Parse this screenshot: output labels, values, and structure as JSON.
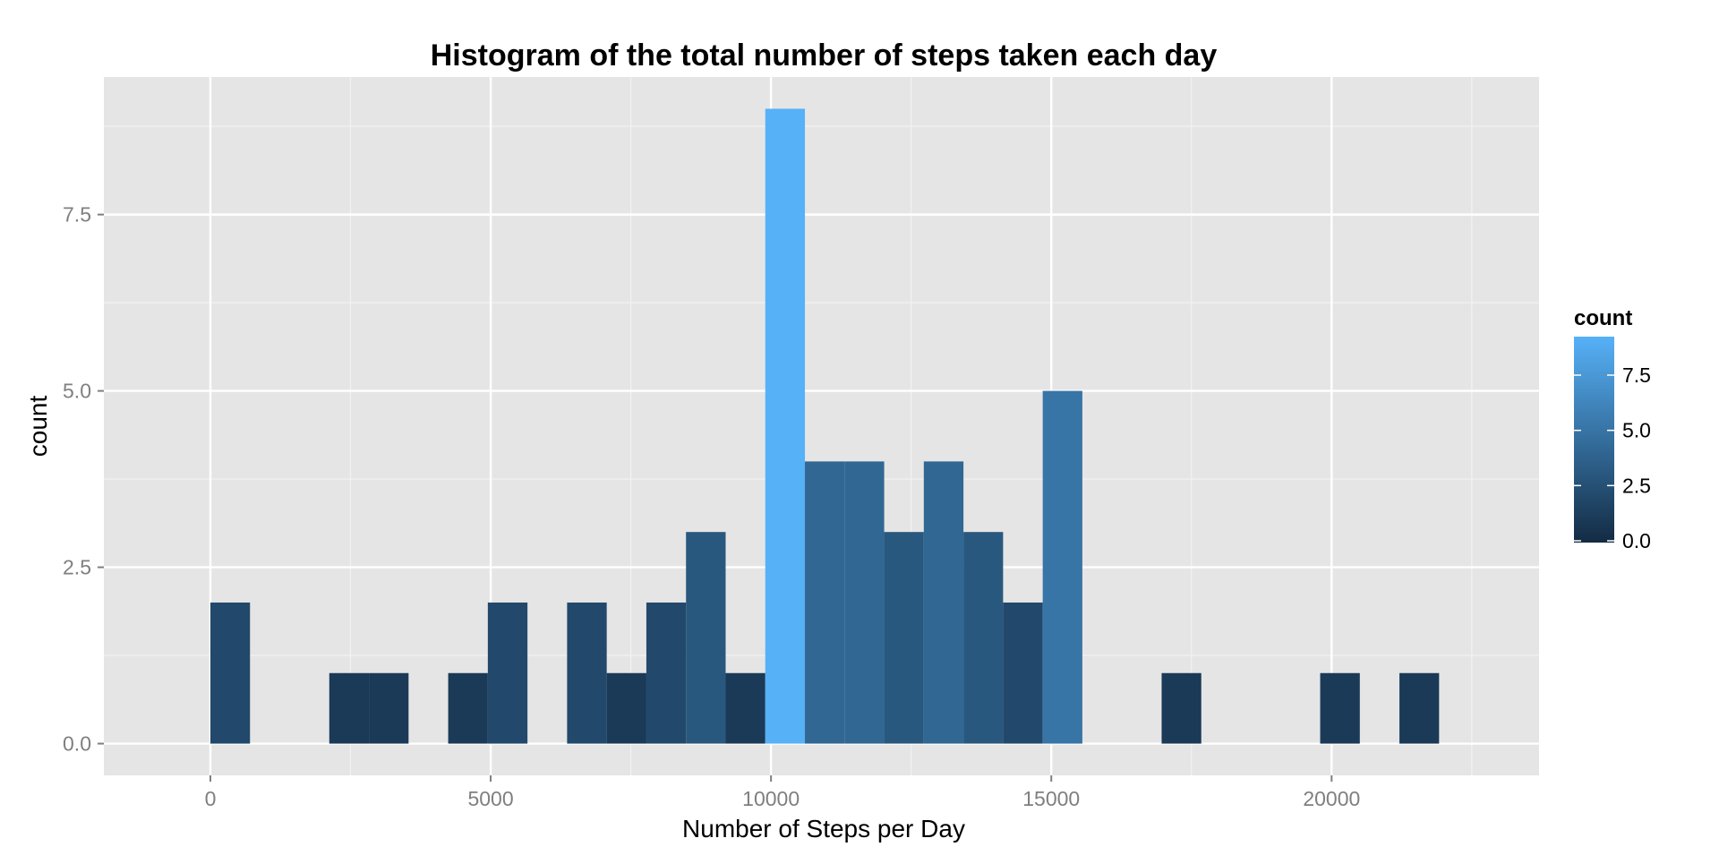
{
  "chart_data": {
    "type": "bar",
    "title": "Histogram of the total number of steps taken each day",
    "xlabel": "Number of Steps per Day",
    "ylabel": "count",
    "xlim": [
      -1900,
      23700
    ],
    "ylim": [
      -0.45,
      9.45
    ],
    "x_ticks": [
      0,
      5000,
      10000,
      15000,
      20000
    ],
    "x_tick_labels": [
      "0",
      "5000",
      "10000",
      "15000",
      "20000"
    ],
    "y_ticks": [
      0,
      2.5,
      5,
      7.5
    ],
    "y_tick_labels": [
      "0.0",
      "2.5",
      "5.0",
      "7.5"
    ],
    "x_minor_ticks": [
      2500,
      7500,
      12500,
      17500,
      22500
    ],
    "y_minor_ticks": [
      1.25,
      3.75,
      6.25,
      8.75
    ],
    "grid": true,
    "bin_width": 707,
    "bins": [
      {
        "x0": 0,
        "x1": 707,
        "count": 2
      },
      {
        "x0": 2121,
        "x1": 2828,
        "count": 1
      },
      {
        "x0": 2828,
        "x1": 3535,
        "count": 1
      },
      {
        "x0": 4242,
        "x1": 4949,
        "count": 1
      },
      {
        "x0": 4949,
        "x1": 5656,
        "count": 2
      },
      {
        "x0": 6363,
        "x1": 7070,
        "count": 2
      },
      {
        "x0": 7070,
        "x1": 7777,
        "count": 1
      },
      {
        "x0": 7777,
        "x1": 8484,
        "count": 2
      },
      {
        "x0": 8484,
        "x1": 9191,
        "count": 3
      },
      {
        "x0": 9191,
        "x1": 9898,
        "count": 1
      },
      {
        "x0": 9898,
        "x1": 10605,
        "count": 9
      },
      {
        "x0": 10605,
        "x1": 11312,
        "count": 4
      },
      {
        "x0": 11312,
        "x1": 12019,
        "count": 4
      },
      {
        "x0": 12019,
        "x1": 12726,
        "count": 3
      },
      {
        "x0": 12726,
        "x1": 13433,
        "count": 4
      },
      {
        "x0": 13433,
        "x1": 14140,
        "count": 3
      },
      {
        "x0": 14140,
        "x1": 14847,
        "count": 2
      },
      {
        "x0": 14847,
        "x1": 15554,
        "count": 5
      },
      {
        "x0": 16968,
        "x1": 17675,
        "count": 1
      },
      {
        "x0": 19796,
        "x1": 20503,
        "count": 1
      },
      {
        "x0": 21210,
        "x1": 21917,
        "count": 1
      }
    ],
    "legend": {
      "title": "count",
      "position": "right",
      "ticks": [
        0,
        2.5,
        5,
        7.5
      ],
      "tick_labels": [
        "0.0",
        "2.5",
        "5.0",
        "7.5"
      ],
      "range": [
        0,
        9
      ],
      "low_color": "#132B43",
      "high_color": "#56B1F7"
    },
    "colors": {
      "panel_background": "#E5E5E5",
      "grid_major": "#FFFFFF",
      "grid_minor": "#F2F2F2",
      "tick_text": "#7F7F7F",
      "text": "#000000"
    }
  }
}
